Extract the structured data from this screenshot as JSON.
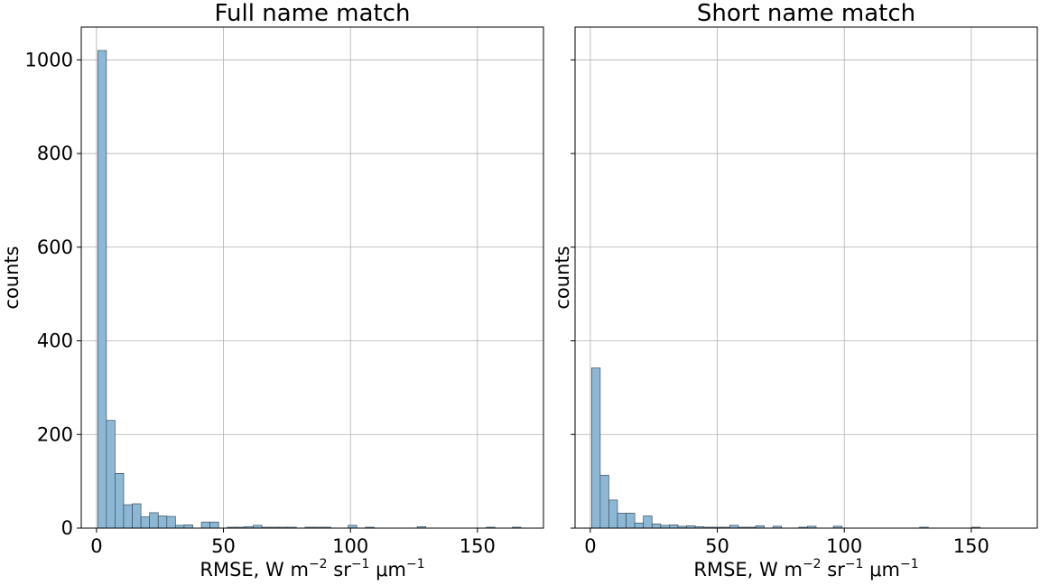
{
  "chart_data": [
    {
      "type": "bar",
      "title": "Full name match",
      "xlabel": "RMSE, W m",
      "xlabel_parts": [
        "RMSE, W m",
        "−2",
        " sr",
        "−1",
        " μm",
        "−1"
      ],
      "ylabel": "counts",
      "xlim": [
        -6,
        176
      ],
      "ylim": [
        0,
        1070
      ],
      "xticks": [
        0,
        50,
        100,
        150
      ],
      "yticks": [
        0,
        200,
        400,
        600,
        800,
        1000
      ],
      "grid": true,
      "bar_color": "#8cb8d6",
      "edge_color": "#3d4f5c",
      "bin_width": 3.4,
      "bin_start": 0.5,
      "values": [
        1020,
        230,
        117,
        50,
        52,
        24,
        33,
        26,
        25,
        6,
        7,
        0,
        13,
        13,
        0,
        2,
        2,
        3,
        6,
        2,
        2,
        2,
        2,
        0,
        2,
        2,
        2,
        0,
        0,
        6,
        0,
        2,
        0,
        0,
        0,
        0,
        0,
        3,
        0,
        0,
        0,
        0,
        0,
        0,
        0,
        2,
        0,
        0,
        2
      ]
    },
    {
      "type": "bar",
      "title": "Short name match",
      "xlabel": "RMSE, W m",
      "xlabel_parts": [
        "RMSE, W m",
        "−2",
        " sr",
        "−1",
        " μm",
        "−1"
      ],
      "ylabel": "counts",
      "xlim": [
        -6,
        176
      ],
      "ylim": [
        0,
        1070
      ],
      "xticks": [
        0,
        50,
        100,
        150
      ],
      "yticks": [
        0,
        200,
        400,
        600,
        800,
        1000
      ],
      "grid": true,
      "bar_color": "#8cb8d6",
      "edge_color": "#3d4f5c",
      "bin_width": 3.4,
      "bin_start": 0.5,
      "values": [
        342,
        113,
        60,
        32,
        32,
        11,
        26,
        9,
        6,
        7,
        4,
        5,
        3,
        2,
        2,
        2,
        6,
        2,
        2,
        5,
        0,
        4,
        0,
        0,
        2,
        4,
        0,
        0,
        4,
        0,
        0,
        0,
        0,
        0,
        0,
        0,
        0,
        0,
        2,
        0,
        0,
        0,
        0,
        0,
        2
      ]
    }
  ]
}
